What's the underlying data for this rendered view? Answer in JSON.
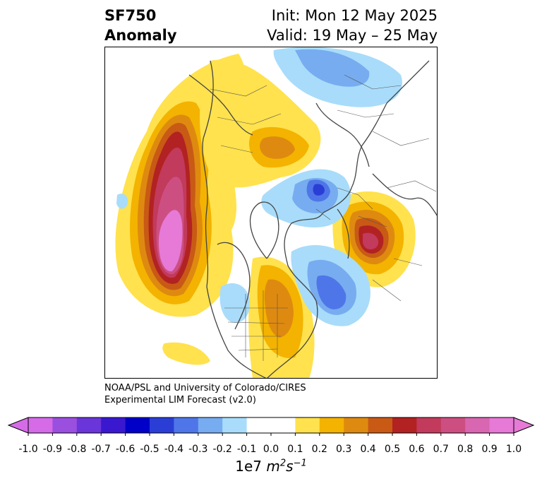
{
  "title": {
    "variable": "SF750",
    "subtitle": "Anomaly",
    "init": "Init: Mon 12 May 2025",
    "valid": "Valid: 19 May – 25 May"
  },
  "credit": {
    "line1": "NOAA/PSL and University of Colorado/CIRES",
    "line2": "Experimental LIM Forecast (v2.0)"
  },
  "colorbar": {
    "ticks": [
      "-1.0",
      "-0.9",
      "-0.8",
      "-0.7",
      "-0.6",
      "-0.5",
      "-0.4",
      "-0.3",
      "-0.2",
      "-0.1",
      "0.0",
      "0.1",
      "0.2",
      "0.3",
      "0.4",
      "0.5",
      "0.6",
      "0.7",
      "0.8",
      "0.9",
      "1.0"
    ],
    "colors": [
      "#d66be8",
      "#9b4fdf",
      "#6a35d9",
      "#3a18d0",
      "#0000c8",
      "#2a3ed6",
      "#4f76e8",
      "#77acf0",
      "#a8dcfa",
      "#ffffff",
      "#ffffff",
      "#ffe24d",
      "#f3b300",
      "#de8a10",
      "#c85a15",
      "#b22222",
      "#c23a5c",
      "#cd4f82",
      "#d866b0",
      "#e67ad6"
    ],
    "units_base": "1e7 ",
    "units_var": "m",
    "units_exp1": "2",
    "units_s": "s",
    "units_exp2": "−1"
  },
  "map_colors": {
    "coast": "#444444",
    "yellow": "#ffe24d",
    "gold": "#f3b300",
    "orange": "#de8a10",
    "darkorange": "#c85a15",
    "red": "#b22222",
    "crimson": "#c23a5c",
    "rose": "#cd4f82",
    "pink": "#d866b0",
    "violet": "#e67ad6",
    "lightblue": "#a8dcfa",
    "skyblue": "#77acf0",
    "blue": "#4f76e8",
    "darkblue": "#2a3ed6"
  }
}
